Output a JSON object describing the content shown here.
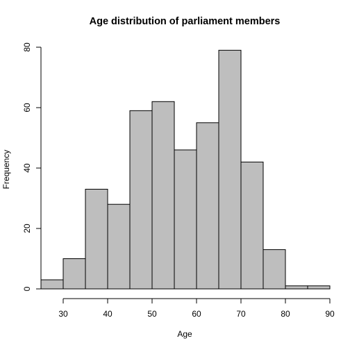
{
  "chart_data": {
    "type": "bar",
    "subtype": "histogram",
    "title": "Age distribution of parliament members",
    "xlabel": "Age",
    "ylabel": "Frequency",
    "bin_edges": [
      25,
      30,
      35,
      40,
      45,
      50,
      55,
      60,
      65,
      70,
      75,
      80,
      85,
      90
    ],
    "values": [
      3,
      10,
      33,
      28,
      59,
      62,
      46,
      55,
      79,
      42,
      13,
      1,
      1
    ],
    "xlim": [
      25,
      90
    ],
    "ylim": [
      0,
      80
    ],
    "xticks": [
      30,
      40,
      50,
      60,
      70,
      80,
      90
    ],
    "yticks": [
      0,
      20,
      40,
      60,
      80
    ],
    "bar_color": "#bebebe",
    "grid": false,
    "legend": "none"
  }
}
